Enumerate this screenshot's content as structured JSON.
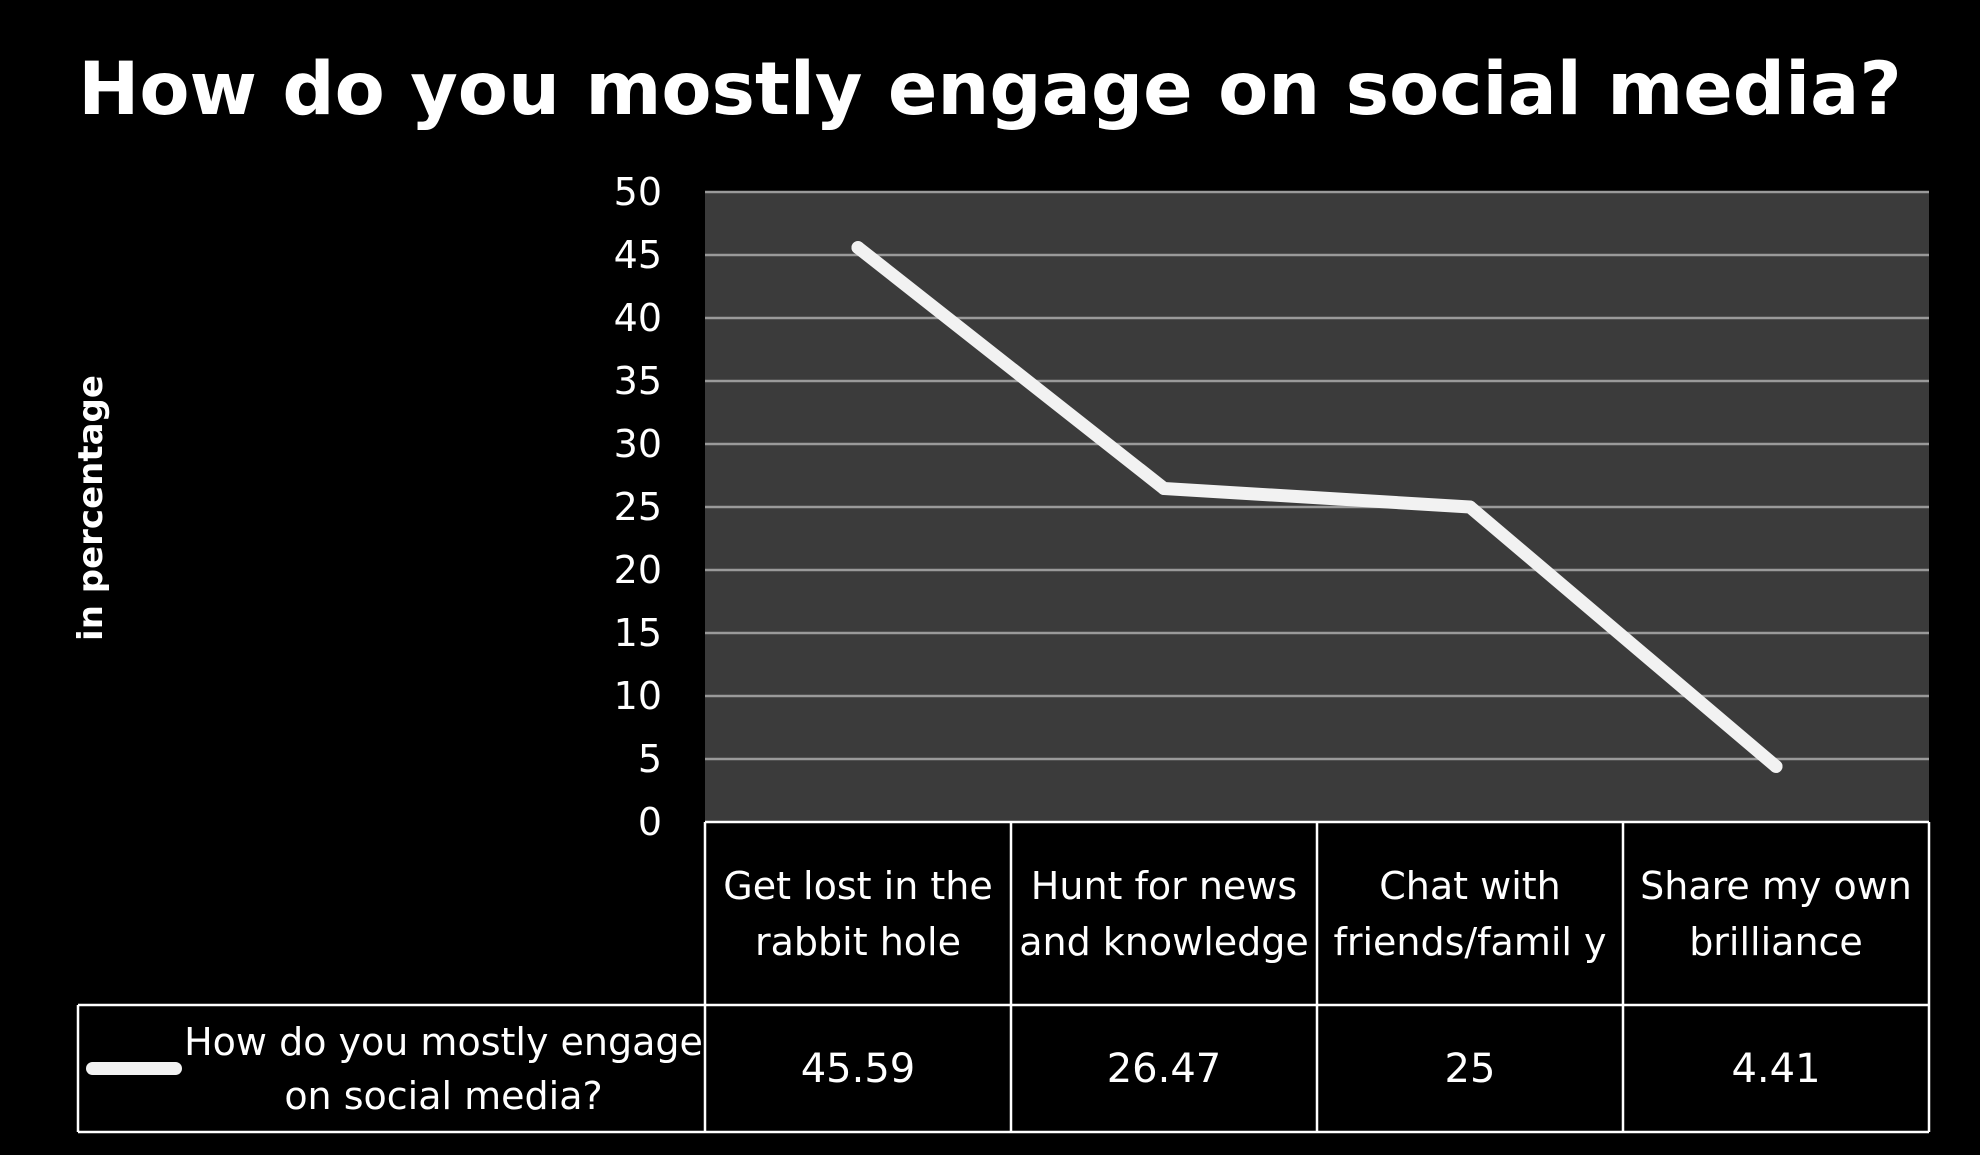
{
  "chart_data": {
    "type": "line",
    "title": "How do you mostly engage on social media?",
    "ylabel": "in percentage",
    "xlabel": "",
    "ylim": [
      0,
      50
    ],
    "y_ticks": [
      "0",
      "5",
      "10",
      "15",
      "20",
      "25",
      "30",
      "35",
      "40",
      "45",
      "50"
    ],
    "categories": [
      "Get lost in the rabbit hole",
      "Hunt for news and knowledge",
      "Chat with friends/famil y",
      "Share my own brilliance"
    ],
    "series": [
      {
        "name": "How do you mostly engage on social media?",
        "values": [
          45.59,
          26.47,
          25,
          4.41
        ]
      }
    ],
    "value_labels": [
      "45.59",
      "26.47",
      "25",
      "4.41"
    ],
    "grid": true,
    "legend": "data-table",
    "colors": {
      "background": "#000000",
      "plot_area": "#3b3b3b",
      "line": "#f2f2f2",
      "gridline": "#9a9a9a",
      "text": "#ffffff"
    }
  }
}
